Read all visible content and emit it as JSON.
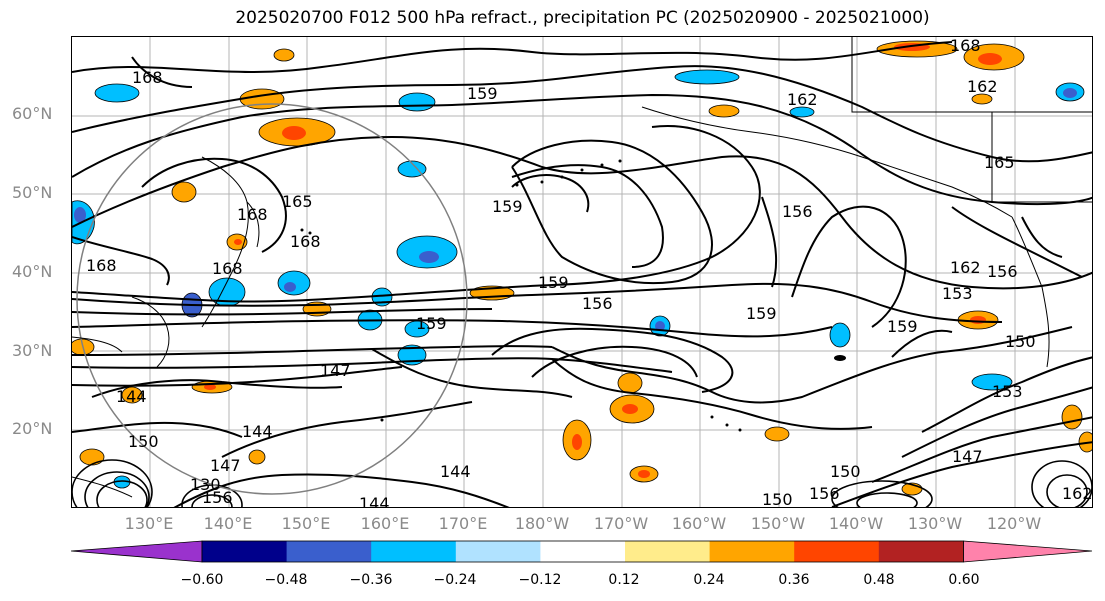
{
  "title": "2025020700 F012 500 hPa refract., precipitation PC (2025020900 - 2025021000)",
  "lat_labels": [
    "60°N",
    "50°N",
    "40°N",
    "30°N",
    "20°N"
  ],
  "lon_labels": [
    "130°E",
    "140°E",
    "150°E",
    "160°E",
    "170°E",
    "180°W",
    "170°W",
    "160°W",
    "150°W",
    "140°W",
    "130°W",
    "120°W"
  ],
  "colorbar": {
    "ticks": [
      "−0.60",
      "−0.48",
      "−0.36",
      "−0.24",
      "−0.12",
      "0.12",
      "0.24",
      "0.36",
      "0.48",
      "0.60"
    ],
    "colors": [
      "#9a32cd",
      "#00008b",
      "#3a5fcd",
      "#00bfff",
      "#b0e2ff",
      "#ffffff",
      "#ffec8b",
      "#ffa500",
      "#ff4500",
      "#b22222",
      "#ff82ab"
    ]
  },
  "contour_labels": [
    "168",
    "159",
    "162",
    "165",
    "168",
    "162",
    "168",
    "165",
    "168",
    "159",
    "156",
    "168",
    "168",
    "162",
    "156",
    "159",
    "156",
    "153",
    "159",
    "159",
    "159",
    "150",
    "147",
    "144",
    "153",
    "144",
    "144",
    "147",
    "150",
    "144",
    "156",
    "150",
    "147",
    "130",
    "150",
    "156",
    "162"
  ],
  "overlay_colors": {
    "contour": "#000000",
    "circle": "#808080",
    "grid": "#b4b4b4",
    "coast": "#000000"
  }
}
